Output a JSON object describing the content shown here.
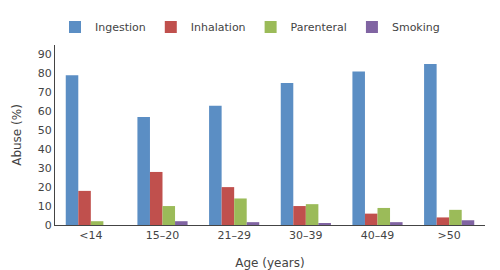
{
  "chart_data": {
    "type": "bar",
    "xlabel": "Age (years)",
    "ylabel": "Abuse (%)",
    "categories": [
      "<14",
      "15–20",
      "21–29",
      "30–39",
      "40–49",
      ">50"
    ],
    "series": [
      {
        "name": "Ingestion",
        "color": "#5b8ec4",
        "values": [
          79,
          57,
          63,
          75,
          81,
          85
        ]
      },
      {
        "name": "Inhalation",
        "color": "#c0504d",
        "values": [
          18,
          28,
          20,
          10,
          6,
          4
        ]
      },
      {
        "name": "Parenteral",
        "color": "#9bbb59",
        "values": [
          2,
          10,
          14,
          11,
          9,
          8
        ]
      },
      {
        "name": "Smoking",
        "color": "#8064a2",
        "values": [
          0,
          2,
          1.5,
          1,
          1.5,
          2.5
        ]
      }
    ],
    "ylim": [
      0,
      95
    ],
    "yticks": [
      0,
      10,
      20,
      30,
      40,
      50,
      60,
      70,
      80,
      90
    ],
    "grid": false,
    "legend": "top"
  }
}
